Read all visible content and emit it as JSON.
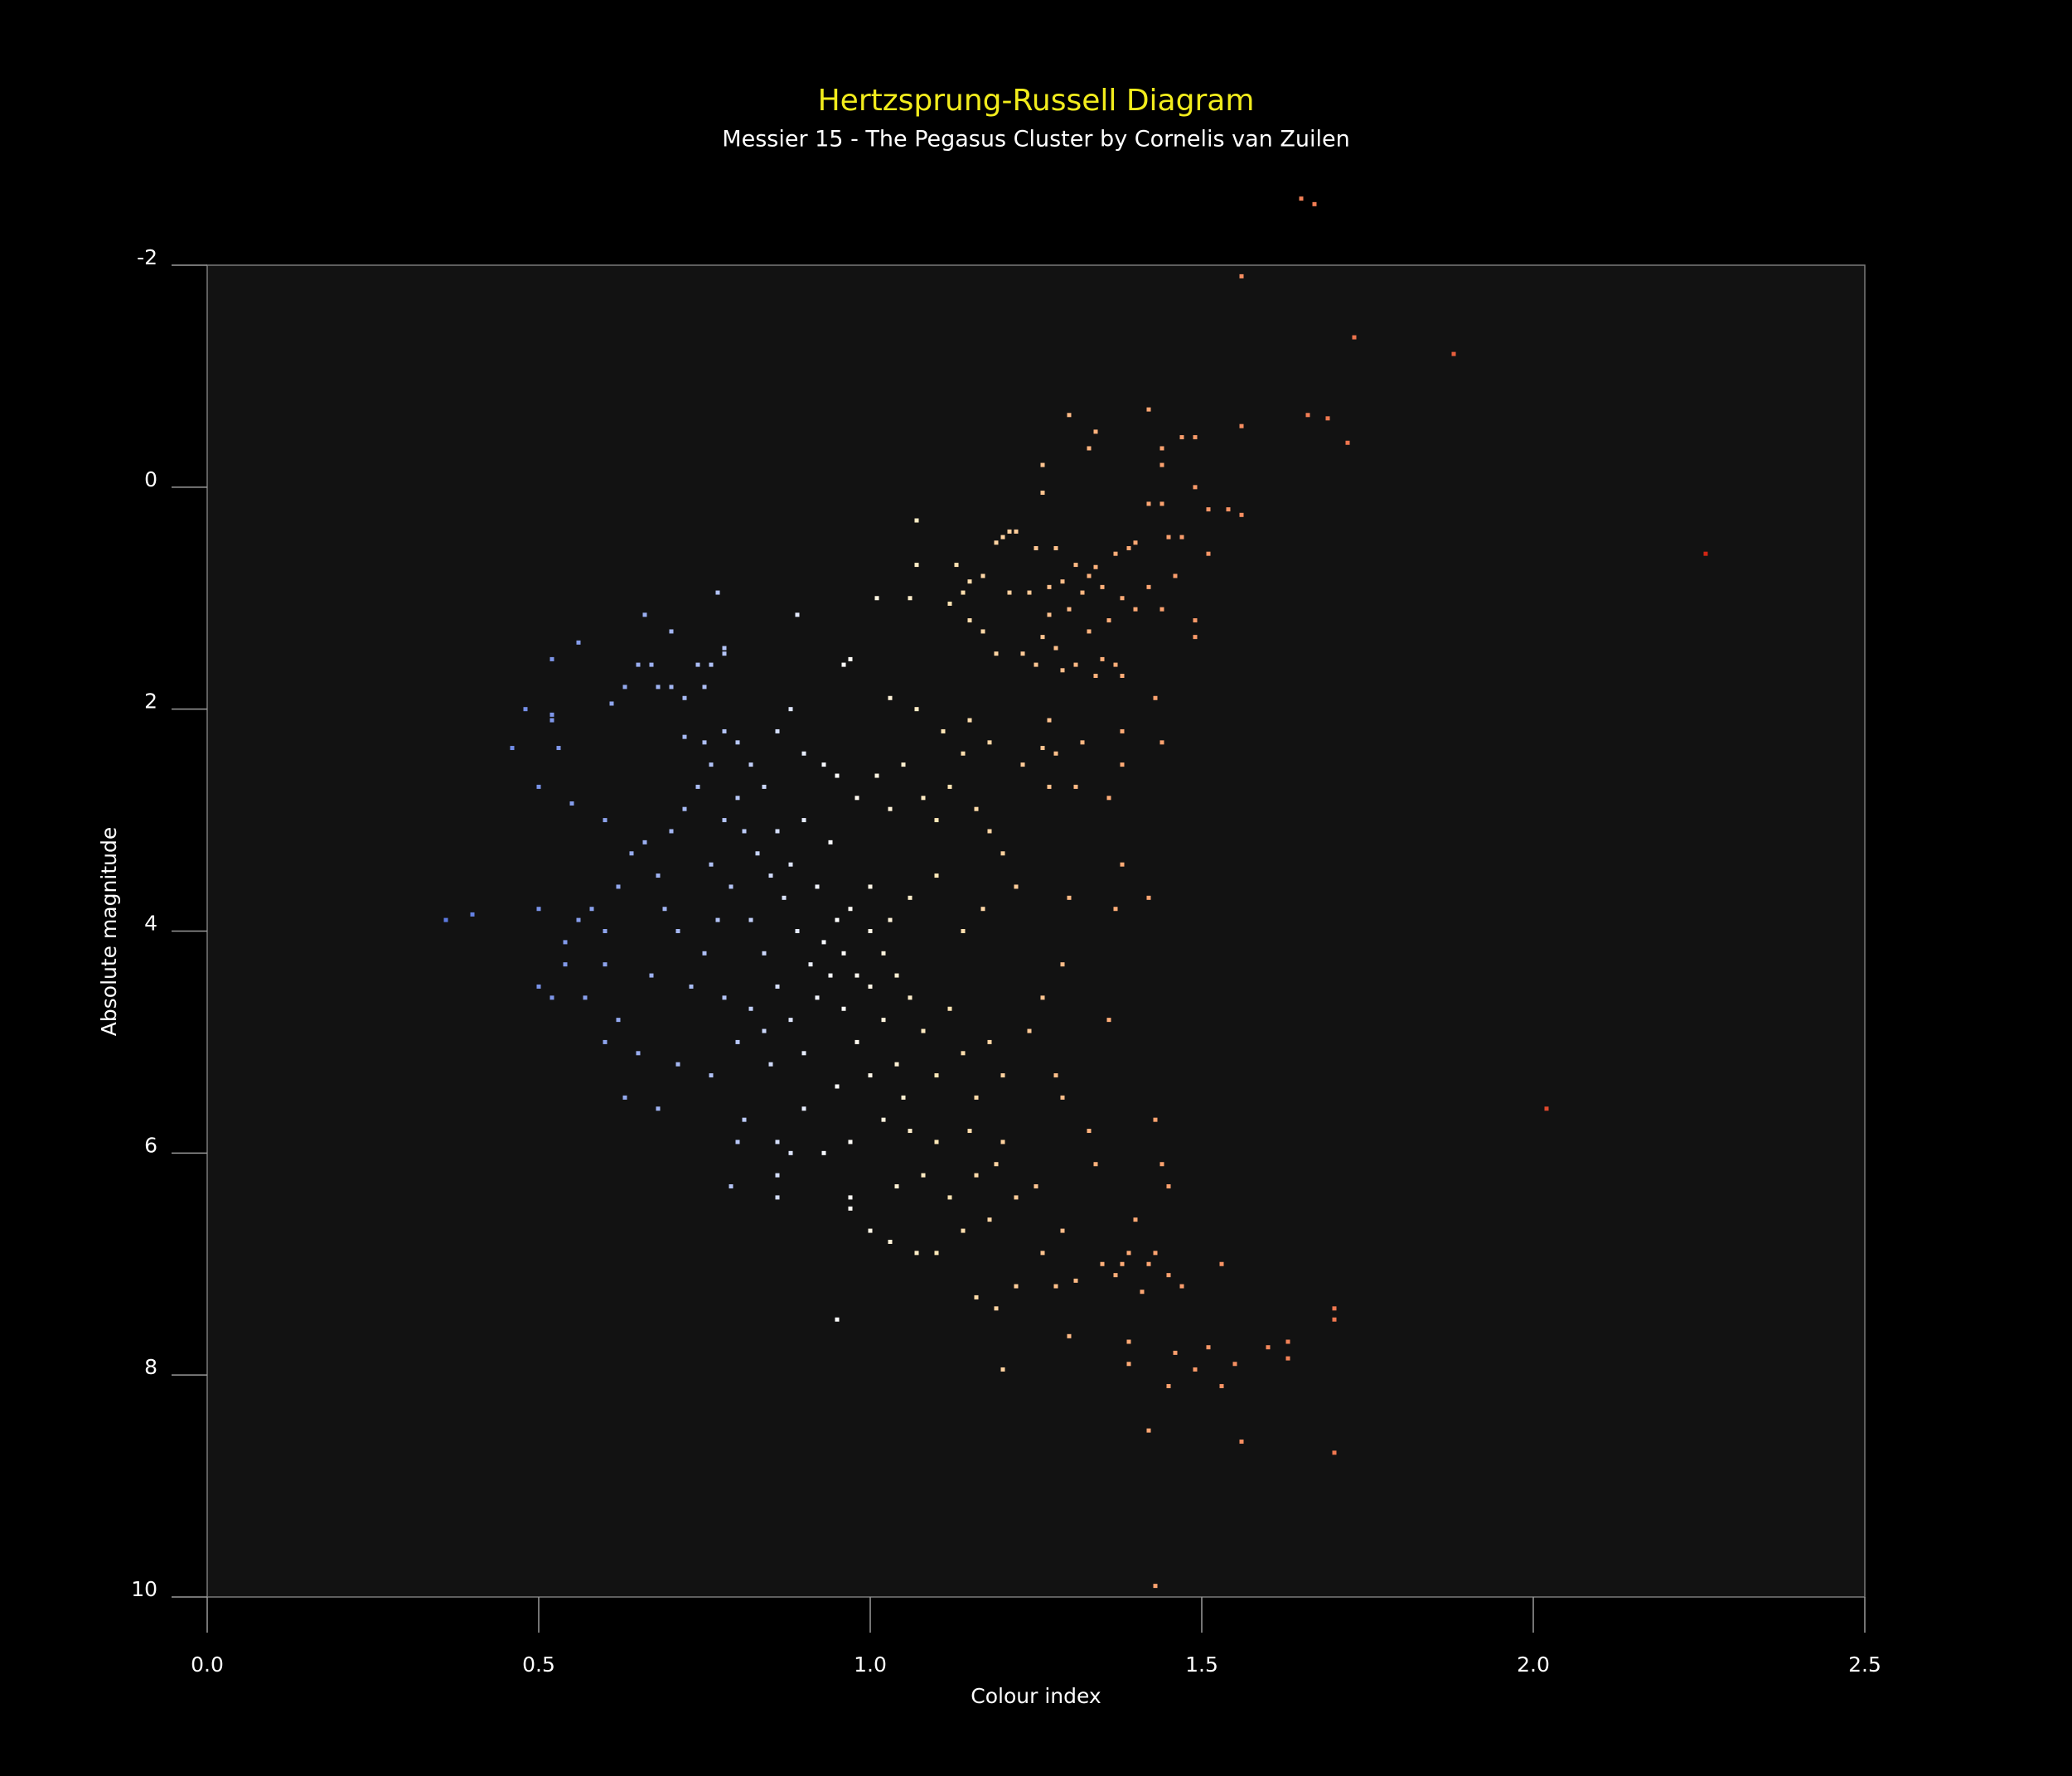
{
  "chart_data": {
    "type": "scatter",
    "title": "Hertzsprung-Russell Diagram",
    "subtitle": "Messier 15 - The Pegasus Cluster by Cornelis van Zuilen",
    "x_label": "Colour index",
    "y_label": "Absolute magnitude",
    "xlim": [
      0,
      2.5
    ],
    "xticks": [
      {
        "value": 0,
        "label": "0.0"
      },
      0.5,
      {
        "value": 1,
        "label": "1.0"
      },
      1.5,
      {
        "value": 2,
        "label": "2.0"
      },
      2.5
    ],
    "ylim": [
      -2,
      10
    ],
    "yticks": [
      -2,
      0,
      2,
      4,
      6,
      8,
      10
    ],
    "y_inverted": true,
    "grid": false,
    "color_stops": [
      {
        "value": 0.35,
        "color": "#5a78e0"
      },
      {
        "value": 0.8,
        "color": "#b8c8f8"
      },
      {
        "value": 0.95,
        "color": "#ffffff"
      },
      {
        "value": 1.1,
        "color": "#ffe8b8"
      },
      {
        "value": 1.35,
        "color": "#ffb07a"
      },
      {
        "value": 1.7,
        "color": "#f07850"
      },
      {
        "value": 2.3,
        "color": "#d02010"
      }
    ],
    "x": [
      1.65,
      1.67,
      1.56,
      1.73,
      1.88,
      1.66,
      1.69,
      1.72,
      1.56,
      1.42,
      1.49,
      1.47,
      1.34,
      1.3,
      1.33,
      1.44,
      1.44,
      1.26,
      1.26,
      1.44,
      1.42,
      1.49,
      1.51,
      1.56,
      1.54,
      1.51,
      1.47,
      1.45,
      1.4,
      1.39,
      1.37,
      1.22,
      1.21,
      1.19,
      1.2,
      1.25,
      1.28,
      1.31,
      1.34,
      1.33,
      1.35,
      1.32,
      1.29,
      1.27,
      1.24,
      1.21,
      1.17,
      1.15,
      1.14,
      1.12,
      1.13,
      1.07,
      1.06,
      1.01,
      1.07,
      1.38,
      1.4,
      1.36,
      1.33,
      1.3,
      1.27,
      1.26,
      1.28,
      1.25,
      1.31,
      1.35,
      1.37,
      1.38,
      1.34,
      1.29,
      1.23,
      1.19,
      1.15,
      1.17,
      1.44,
      1.49,
      1.49,
      1.42,
      1.46,
      1.43,
      1.44,
      1.38,
      1.38,
      1.36,
      1.32,
      1.27,
      1.26,
      1.28,
      1.23,
      1.18,
      1.15,
      1.14,
      1.11,
      1.07,
      1.03,
      1.27,
      1.31,
      1.38,
      1.37,
      1.42,
      1.3,
      1.29,
      1.26,
      1.24,
      1.36,
      1.28,
      1.29,
      1.33,
      1.34,
      1.43,
      1.44,
      1.45,
      1.4,
      1.43,
      1.42,
      1.39,
      1.38,
      1.35,
      1.37,
      1.47,
      1.45,
      1.53,
      1.41,
      1.39,
      1.39,
      1.46,
      1.51,
      1.49,
      1.55,
      1.53,
      1.45,
      1.6,
      1.63,
      1.63,
      1.7,
      1.7,
      1.7,
      1.56,
      1.42,
      1.43,
      1.3,
      1.2,
      0.95,
      1.16,
      1.19,
      1.22,
      1.28,
      1.31,
      1.26,
      1.29,
      1.25,
      1.22,
      1.18,
      1.14,
      1.1,
      1.07,
      1.03,
      1,
      0.97,
      0.97,
      1.04,
      1.08,
      1.12,
      1.16,
      1.19,
      1.2,
      1.15,
      1.1,
      1.06,
      1.02,
      0.97,
      0.93,
      0.88,
      0.86,
      0.86,
      0.86,
      0.79,
      0.8,
      0.81,
      0.76,
      0.68,
      0.71,
      0.65,
      0.63,
      0.6,
      0.62,
      0.57,
      0.54,
      0.52,
      0.54,
      0.5,
      0.4,
      0.36,
      0.56,
      0.58,
      0.6,
      0.62,
      0.64,
      0.66,
      0.68,
      0.7,
      0.72,
      0.74,
      0.72,
      0.75,
      0.76,
      0.78,
      0.8,
      0.82,
      0.84,
      0.86,
      0.88,
      0.9,
      0.93,
      0.95,
      0.98,
      1.01,
      1.03,
      1.05,
      1.08,
      1.1,
      1.12,
      1.16,
      1.18,
      1.2,
      1.22,
      1.17,
      1.14,
      1.1,
      1.06,
      1.03,
      1,
      0.97,
      0.95,
      0.93,
      0.91,
      0.89,
      0.87,
      0.85,
      0.83,
      0.81,
      0.79,
      0.77,
      0.75,
      0.73,
      0.71,
      0.69,
      0.67,
      0.82,
      0.84,
      0.86,
      0.88,
      0.9,
      0.92,
      0.94,
      0.96,
      0.98,
      1,
      1.02,
      1.04,
      1.06,
      1.08,
      1.1,
      1.12,
      1.14,
      1.16,
      1.18,
      1.2,
      1.05,
      1,
      0.95,
      0.9,
      0.85,
      0.8,
      0.78,
      0.76,
      0.78,
      0.8,
      0.82,
      0.84,
      0.86,
      0.88,
      0.9,
      0.92,
      0.94,
      0.96,
      0.98,
      1,
      1.02,
      1.04,
      0.66,
      0.7,
      0.77,
      0.89,
      0.97,
      0.96,
      0.78,
      0.78,
      0.76,
      0.74,
      0.75,
      0.72,
      0.7,
      0.68,
      0.67,
      0.65,
      0.63,
      0.61,
      0.56,
      0.52,
      0.48,
      0.52,
      0.52,
      0.53,
      0.46,
      0.5,
      0.55,
      0.6,
      0.5,
      0.6,
      2.02,
      2.26
    ],
    "values": [
      -2.6,
      -2.55,
      -1.9,
      -1.35,
      -1.2,
      -0.65,
      -0.62,
      -0.4,
      -0.55,
      -0.7,
      -0.45,
      -0.45,
      -0.5,
      -0.65,
      -0.35,
      -0.35,
      -0.2,
      0.05,
      -0.2,
      0.15,
      0.15,
      0,
      0.2,
      0.25,
      0.2,
      0.6,
      0.45,
      0.45,
      0.5,
      0.55,
      0.6,
      0.4,
      0.4,
      0.5,
      0.45,
      0.55,
      0.55,
      0.7,
      0.72,
      0.8,
      0.9,
      0.95,
      0.85,
      0.9,
      0.95,
      0.95,
      0.8,
      0.85,
      0.95,
      1.05,
      0.7,
      0.7,
      1,
      1,
      0.3,
      1,
      1.1,
      1.2,
      1.3,
      1.1,
      1.15,
      1.35,
      1.45,
      1.6,
      1.6,
      1.55,
      1.6,
      1.7,
      1.7,
      1.65,
      1.5,
      1.5,
      1.2,
      1.3,
      1.1,
      1.2,
      1.35,
      0.9,
      0.8,
      1.9,
      2.3,
      2.2,
      2.5,
      2.8,
      2.3,
      2.1,
      2.35,
      2.4,
      2.5,
      2.3,
      2.1,
      2.4,
      2.2,
      2,
      1.9,
      2.7,
      2.7,
      3.4,
      3.8,
      3.7,
      3.7,
      4.3,
      4.6,
      4.9,
      4.8,
      5.3,
      5.5,
      5.8,
      6.1,
      5.7,
      6.1,
      6.3,
      6.6,
      6.9,
      7,
      6.9,
      7,
      7,
      7.1,
      7.2,
      7.1,
      7,
      7.25,
      7.7,
      7.9,
      7.8,
      7.75,
      7.95,
      7.9,
      8.1,
      8.1,
      7.75,
      7.7,
      7.85,
      7.4,
      7.5,
      8.7,
      8.6,
      8.5,
      9.9,
      7.65,
      7.95,
      7.5,
      7.3,
      7.4,
      7.2,
      7.2,
      7.15,
      6.9,
      6.7,
      6.3,
      6.4,
      6.6,
      6.7,
      6.9,
      6.9,
      6.8,
      6.7,
      6.5,
      6.4,
      6.3,
      6.2,
      6.4,
      6.2,
      6.1,
      5.9,
      5.8,
      5.9,
      5.8,
      5.7,
      5.9,
      6,
      6,
      5.9,
      6.2,
      6.4,
      6.3,
      5.9,
      5.7,
      5.3,
      5.6,
      5.2,
      5.1,
      5.5,
      5,
      4.8,
      4.6,
      4.3,
      4.6,
      4.1,
      3.8,
      3.85,
      3.9,
      3.9,
      3.8,
      4,
      3.6,
      3.3,
      3.2,
      3.5,
      3.1,
      2.9,
      2.7,
      2.25,
      2.3,
      2.5,
      2.2,
      2.3,
      2.5,
      2.7,
      2.2,
      2,
      2.4,
      2.5,
      2.6,
      2.8,
      2.6,
      2.9,
      2.5,
      2.8,
      3,
      2.7,
      2.9,
      3.1,
      3.3,
      3.6,
      3.8,
      4,
      3.5,
      3.7,
      3.9,
      3.6,
      3.8,
      3.9,
      4.1,
      4.3,
      4,
      3.7,
      3.5,
      3.3,
      3.1,
      3.6,
      3.9,
      4.2,
      4.5,
      4,
      3.8,
      4.4,
      4.7,
      4.9,
      4.5,
      4.8,
      5.1,
      4.6,
      4.4,
      4.7,
      5,
      4.5,
      4.8,
      5.2,
      4.6,
      4.9,
      5.3,
      4.7,
      5.1,
      5.5,
      5,
      5.3,
      5.5,
      5.3,
      5.4,
      5.6,
      5.2,
      5,
      4.6,
      3.4,
      3,
      2.8,
      3.9,
      4.2,
      3.1,
      3.4,
      3,
      3.6,
      3.2,
      4.2,
      4.4,
      4,
      4.2,
      4.4,
      1.15,
      1.3,
      0.95,
      1.15,
      1.55,
      1.6,
      1.45,
      1.5,
      1.6,
      1.6,
      1.8,
      1.9,
      1.8,
      1.8,
      1.6,
      1.6,
      1.8,
      1.95,
      1.4,
      1.55,
      2,
      2.05,
      2.1,
      2.35,
      2.35,
      2.7,
      2.85,
      3,
      4.5,
      4.3,
      5.6,
      0.6
    ]
  }
}
